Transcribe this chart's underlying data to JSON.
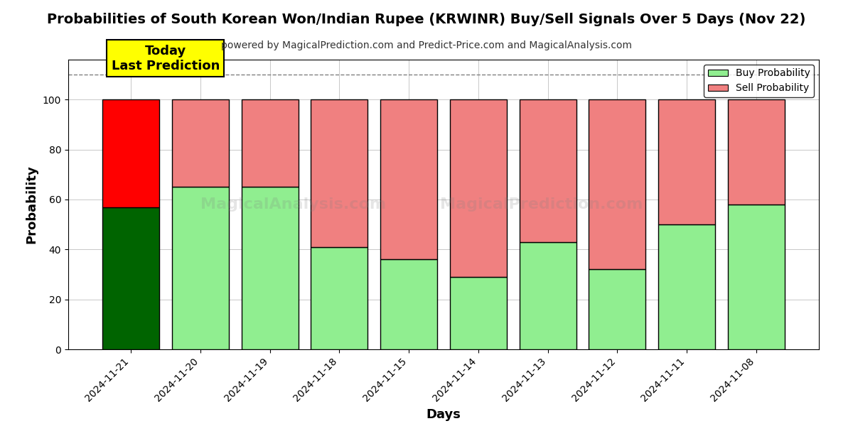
{
  "title": "Probabilities of South Korean Won/Indian Rupee (KRWINR) Buy/Sell Signals Over 5 Days (Nov 22)",
  "subtitle": "powered by MagicalPrediction.com and Predict-Price.com and MagicalAnalysis.com",
  "xlabel": "Days",
  "ylabel": "Probability",
  "days": [
    "2024-11-21",
    "2024-11-20",
    "2024-11-19",
    "2024-11-18",
    "2024-11-15",
    "2024-11-14",
    "2024-11-13",
    "2024-11-12",
    "2024-11-11",
    "2024-11-08"
  ],
  "buy_values": [
    57,
    65,
    65,
    41,
    36,
    29,
    43,
    32,
    50,
    58
  ],
  "sell_values": [
    43,
    35,
    35,
    59,
    64,
    71,
    57,
    68,
    50,
    42
  ],
  "today_buy_color": "#006400",
  "today_sell_color": "#FF0000",
  "buy_color": "#90EE90",
  "sell_color": "#F08080",
  "today_annotation": "Today\nLast Prediction",
  "annotation_bg": "#FFFF00",
  "dashed_line_y": 110,
  "ylim": [
    0,
    116
  ],
  "yticks": [
    0,
    20,
    40,
    60,
    80,
    100
  ],
  "bar_edgecolor": "#000000",
  "bar_linewidth": 1.0,
  "bar_width": 0.82,
  "title_fontsize": 14,
  "subtitle_fontsize": 10,
  "legend_fontsize": 10,
  "xlabel_fontsize": 13,
  "ylabel_fontsize": 13,
  "tick_fontsize": 10,
  "annotation_fontsize": 13
}
